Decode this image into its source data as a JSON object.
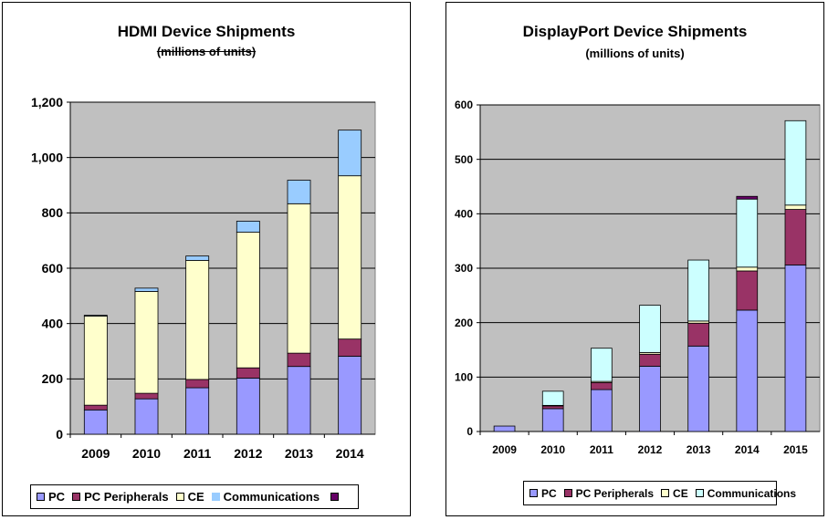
{
  "colors": {
    "pc": "#9999FF",
    "pc_peripherals": "#993366",
    "ce": "#FFFFCC",
    "communications": "#99CCFF",
    "communications_dp": "#CCFFFF",
    "extra": "#660066",
    "plot_bg": "#C0C0C0"
  },
  "chart_data": [
    {
      "type": "bar",
      "stacked": true,
      "title": "HDMI Device Shipments",
      "subtitle": "(millions of units)",
      "categories": [
        "2009",
        "2010",
        "2011",
        "2012",
        "2013",
        "2014"
      ],
      "ylim": [
        0,
        1200
      ],
      "yticks": [
        0,
        200,
        400,
        600,
        800,
        1000,
        1200
      ],
      "ytick_labels": [
        "0",
        "200",
        "400",
        "600",
        "800",
        "1,000",
        "1,200"
      ],
      "grid": true,
      "legend": "bottom",
      "series": [
        {
          "name": "PC",
          "values": [
            88,
            128,
            168,
            203,
            245,
            282
          ],
          "color": "#9999FF"
        },
        {
          "name": "PC Peripherals",
          "values": [
            17,
            20,
            30,
            37,
            48,
            62
          ],
          "color": "#993366"
        },
        {
          "name": "CE",
          "values": [
            322,
            368,
            430,
            490,
            540,
            590
          ],
          "color": "#FFFFCC"
        },
        {
          "name": "Communications",
          "values": [
            3,
            12,
            16,
            40,
            85,
            165
          ],
          "color": "#99CCFF"
        }
      ],
      "legend_entries": [
        "PC",
        "PC Peripherals",
        "CE",
        "Communications",
        ""
      ]
    },
    {
      "type": "bar",
      "stacked": true,
      "title": "DisplayPort Device Shipments",
      "subtitle": "(millions of units)",
      "categories": [
        "2009",
        "2010",
        "2011",
        "2012",
        "2013",
        "2014",
        "2015"
      ],
      "ylim": [
        0,
        600
      ],
      "yticks": [
        0,
        100,
        200,
        300,
        400,
        500,
        600
      ],
      "ytick_labels": [
        "0",
        "100",
        "200",
        "300",
        "400",
        "500",
        "600"
      ],
      "grid": true,
      "legend": "bottom",
      "series": [
        {
          "name": "PC",
          "values": [
            10,
            42,
            77,
            120,
            157,
            223,
            306
          ],
          "color": "#9999FF"
        },
        {
          "name": "PC Peripherals",
          "values": [
            0,
            5,
            13,
            22,
            42,
            72,
            102
          ],
          "color": "#993366"
        },
        {
          "name": "CE",
          "values": [
            0,
            1,
            2,
            3,
            4,
            7,
            8
          ],
          "color": "#FFFFCC"
        },
        {
          "name": "Communications",
          "values": [
            0,
            26,
            61,
            87,
            112,
            125,
            155
          ],
          "color": "#CCFFFF"
        },
        {
          "name": "",
          "values": [
            0,
            0,
            0,
            0,
            0,
            5,
            0
          ],
          "color": "#660066"
        }
      ],
      "legend_entries": [
        "PC",
        "PC Peripherals",
        "CE",
        "Communications"
      ]
    }
  ]
}
